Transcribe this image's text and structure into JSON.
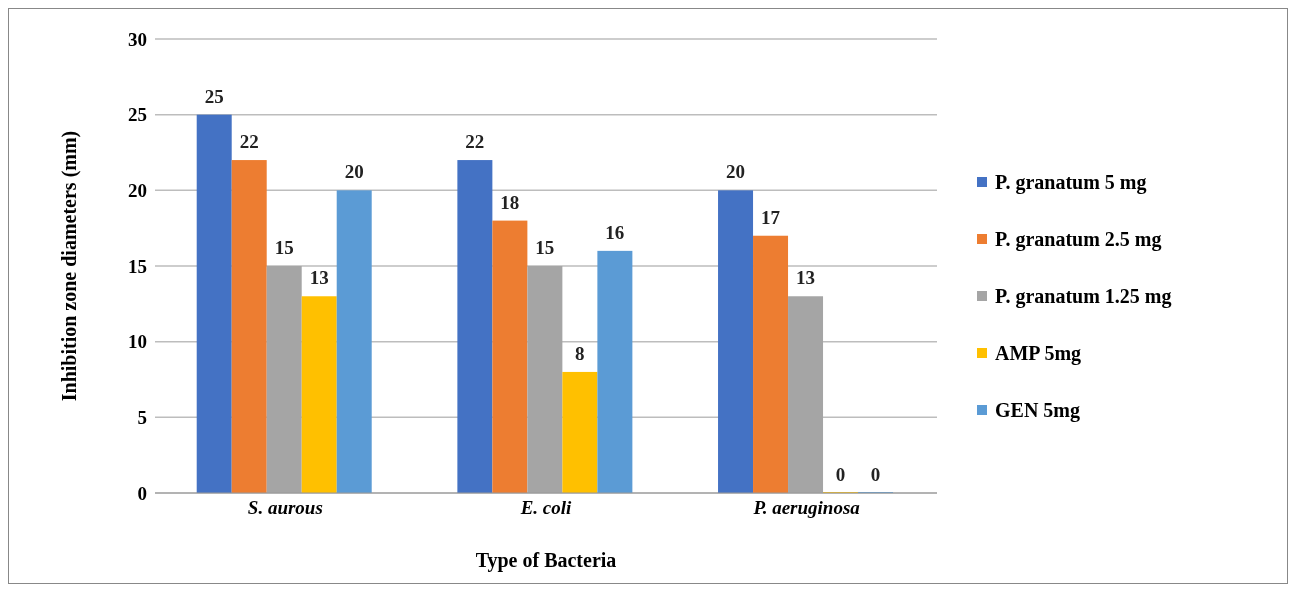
{
  "chart_data": {
    "type": "bar",
    "xlabel": "Type of Bacteria",
    "ylabel": "Inhibition zone diameters (mm)",
    "categories": [
      "S. aurous",
      "E. coli",
      "P. aeruginosa"
    ],
    "series": [
      {
        "name": "P. granatum 5 mg",
        "color": "#4472c4",
        "values": [
          25,
          22,
          20
        ]
      },
      {
        "name": "P. granatum 2.5 mg",
        "color": "#ed7d31",
        "values": [
          22,
          18,
          17
        ]
      },
      {
        "name": "P. granatum 1.25 mg",
        "color": "#a5a5a5",
        "values": [
          15,
          15,
          13
        ]
      },
      {
        "name": "AMP 5mg",
        "color": "#ffc000",
        "values": [
          13,
          8,
          0
        ]
      },
      {
        "name": "GEN 5mg",
        "color": "#5b9bd5",
        "values": [
          20,
          16,
          0
        ]
      }
    ],
    "ylim": [
      0,
      30
    ],
    "yticks": [
      0,
      5,
      10,
      15,
      20,
      25,
      30
    ],
    "grid": "y",
    "legend": "right",
    "data_labels": true
  }
}
